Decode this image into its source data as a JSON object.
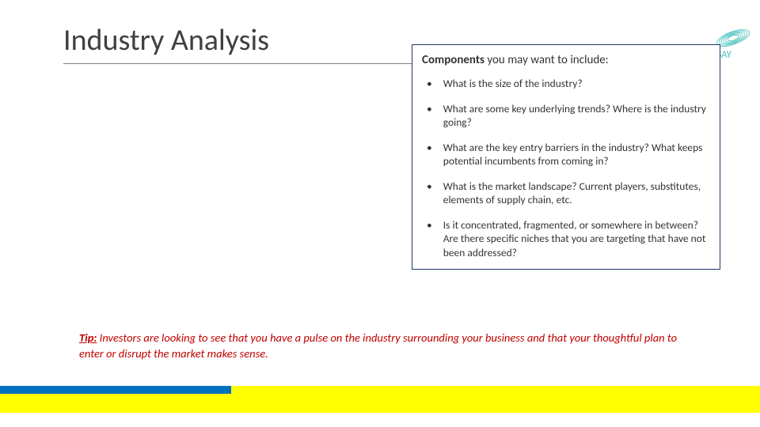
{
  "colors": {
    "text": "#333333",
    "title": "#404040",
    "underline": "#7f7f7f",
    "box_border": "#1f3864",
    "tip_red": "#c00000",
    "band_yellow": "#ffff00",
    "band_blue": "#0070c0",
    "watermark": "#4fc1c1",
    "watermark_text": "#4fc1c1"
  },
  "layout": {
    "underline_width": 805,
    "band_yellow_height": 34,
    "band_blue_width": 292
  },
  "title": "Industry Analysis",
  "watermark_label": "SAY",
  "components": {
    "header_bold": "Components",
    "header_rest": " you may want to include:",
    "bullets": [
      "What is the size of the industry?",
      "What are some key underlying trends? Where is the industry going?",
      "What are the key entry barriers in the industry? What keeps potential incumbents from coming in?",
      "What is the market landscape? Current players, substitutes, elements of supply chain, etc.",
      "Is it concentrated, fragmented, or somewhere in between? Are there specific niches that you are targeting that have not been addressed?"
    ]
  },
  "tip": {
    "label": "Tip:",
    "body": " Investors are looking to see that you have a pulse on the industry surrounding your business and that your thoughtful plan to enter or disrupt the market makes sense."
  }
}
